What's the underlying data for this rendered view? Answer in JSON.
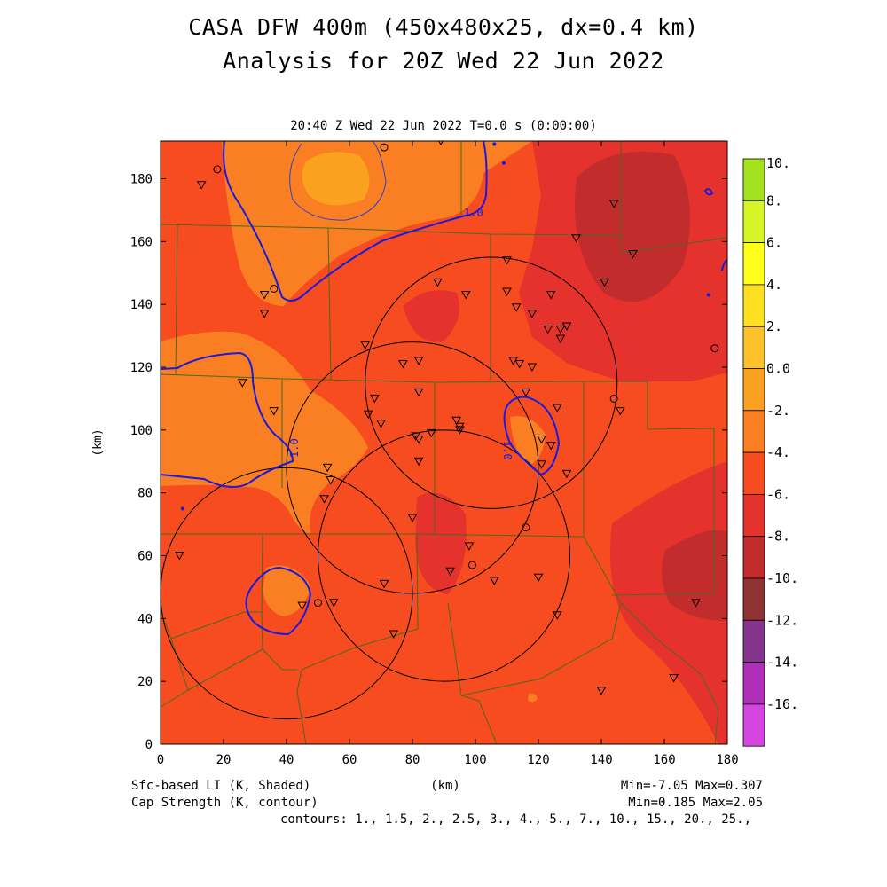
{
  "header": {
    "title_line1": "CASA DFW 400m (450x480x25, dx=0.4 km)",
    "title_line2": "Analysis for 20Z Wed 22 Jun 2022",
    "plot_subtitle": "20:40 Z Wed 22 Jun 2022   T=0.0 s (0:00:00)"
  },
  "axes": {
    "x_label": "(km)",
    "y_label": "(km)",
    "x_ticks": [
      "0",
      "20",
      "40",
      "60",
      "80",
      "100",
      "120",
      "140",
      "160",
      "180"
    ],
    "y_ticks": [
      "0",
      "20",
      "40",
      "60",
      "80",
      "100",
      "120",
      "140",
      "160",
      "180"
    ],
    "x_range": [
      0,
      180
    ],
    "y_range": [
      0,
      192
    ]
  },
  "colorbar": {
    "labels": [
      "10.",
      "8.",
      "6.",
      "4.",
      "2.",
      "0.0",
      "-2.",
      "-4.",
      "-6.",
      "-8.",
      "-10.",
      "-12.",
      "-14.",
      "-16."
    ],
    "colors": [
      "#a4e21e",
      "#d6f527",
      "#ffff1a",
      "#ffe020",
      "#fdc22a",
      "#fba120",
      "#f97f22",
      "#f64c20",
      "#e5322c",
      "#c22c2c",
      "#8e3232",
      "#85348c",
      "#b02fb8",
      "#d445e0"
    ]
  },
  "contour_label": "1.0",
  "footer": {
    "shaded_field": "Sfc-based LI (K, Shaded)",
    "contour_field": "Cap Strength (K, contour)",
    "x_unit": "(km)",
    "shaded_minmax": "Min=-7.05 Max=0.307",
    "contour_minmax": "Min=0.185 Max=2.05",
    "contours": "contours: 1., 1.5, 2., 2.5, 3., 4., 5., 7., 10., 15., 20., 25.,"
  },
  "colors": {
    "background_field": "#f64c20",
    "contour_line": "#1a1adc",
    "county_border": "#4a6a1c",
    "radar_ring": "#000000"
  },
  "map_data": {
    "radar_rings": [
      {
        "cx": 40,
        "cy": 48,
        "r": 40
      },
      {
        "cx": 80,
        "cy": 88,
        "r": 40
      },
      {
        "cx": 105,
        "cy": 115,
        "r": 40
      },
      {
        "cx": 90,
        "cy": 60,
        "r": 40
      }
    ],
    "stations_triangle": [
      [
        6,
        60
      ],
      [
        13,
        178
      ],
      [
        26,
        115
      ],
      [
        33,
        143
      ],
      [
        33,
        137
      ],
      [
        36,
        106
      ],
      [
        45,
        44
      ],
      [
        53,
        88
      ],
      [
        54,
        84
      ],
      [
        52,
        78
      ],
      [
        55,
        45
      ],
      [
        65,
        127
      ],
      [
        66,
        105
      ],
      [
        68,
        110
      ],
      [
        70,
        102
      ],
      [
        71,
        51
      ],
      [
        74,
        35
      ],
      [
        77,
        121
      ],
      [
        80,
        72
      ],
      [
        82,
        122
      ],
      [
        82,
        112
      ],
      [
        81,
        98
      ],
      [
        82,
        97
      ],
      [
        82,
        90
      ],
      [
        86,
        99
      ],
      [
        88,
        147
      ],
      [
        89,
        192
      ],
      [
        92,
        55
      ],
      [
        94,
        103
      ],
      [
        95,
        101
      ],
      [
        95,
        100
      ],
      [
        97,
        143
      ],
      [
        98,
        63
      ],
      [
        106,
        52
      ],
      [
        110,
        154
      ],
      [
        110,
        144
      ],
      [
        112,
        122
      ],
      [
        113,
        139
      ],
      [
        114,
        121
      ],
      [
        116,
        112
      ],
      [
        118,
        137
      ],
      [
        118,
        120
      ],
      [
        120,
        53
      ],
      [
        121,
        97
      ],
      [
        121,
        89
      ],
      [
        123,
        132
      ],
      [
        124,
        143
      ],
      [
        124,
        95
      ],
      [
        126,
        107
      ],
      [
        126,
        41
      ],
      [
        127,
        132
      ],
      [
        127,
        129
      ],
      [
        129,
        133
      ],
      [
        129,
        86
      ],
      [
        132,
        161
      ],
      [
        140,
        17
      ],
      [
        141,
        147
      ],
      [
        144,
        172
      ],
      [
        146,
        106
      ],
      [
        150,
        156
      ],
      [
        163,
        21
      ],
      [
        170,
        45
      ]
    ],
    "stations_circle": [
      [
        18,
        183
      ],
      [
        36,
        145
      ],
      [
        71,
        190
      ],
      [
        50,
        45
      ],
      [
        99,
        57
      ],
      [
        116,
        69
      ],
      [
        144,
        110
      ],
      [
        176,
        126
      ]
    ],
    "stations_dot": [
      [
        7,
        75
      ],
      [
        106,
        191
      ],
      [
        109,
        185
      ],
      [
        174,
        143
      ]
    ]
  }
}
